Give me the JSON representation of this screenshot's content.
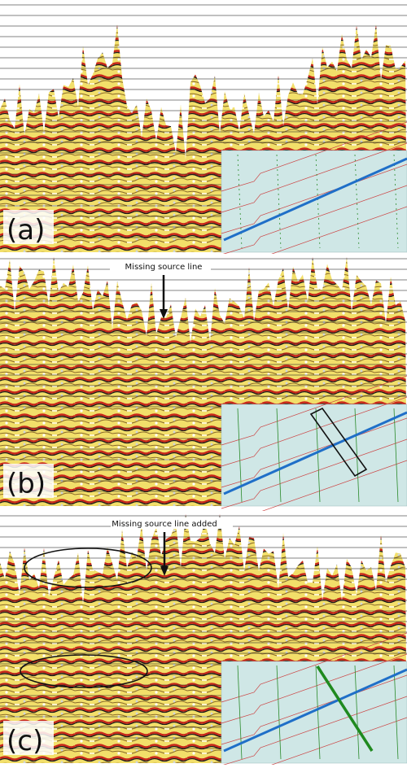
{
  "panels": [
    {
      "label": "(a)"
    },
    {
      "label": "(b)",
      "annotation": "Missing source line"
    },
    {
      "label": "(c)",
      "annotation": "Missing source line added"
    }
  ]
}
